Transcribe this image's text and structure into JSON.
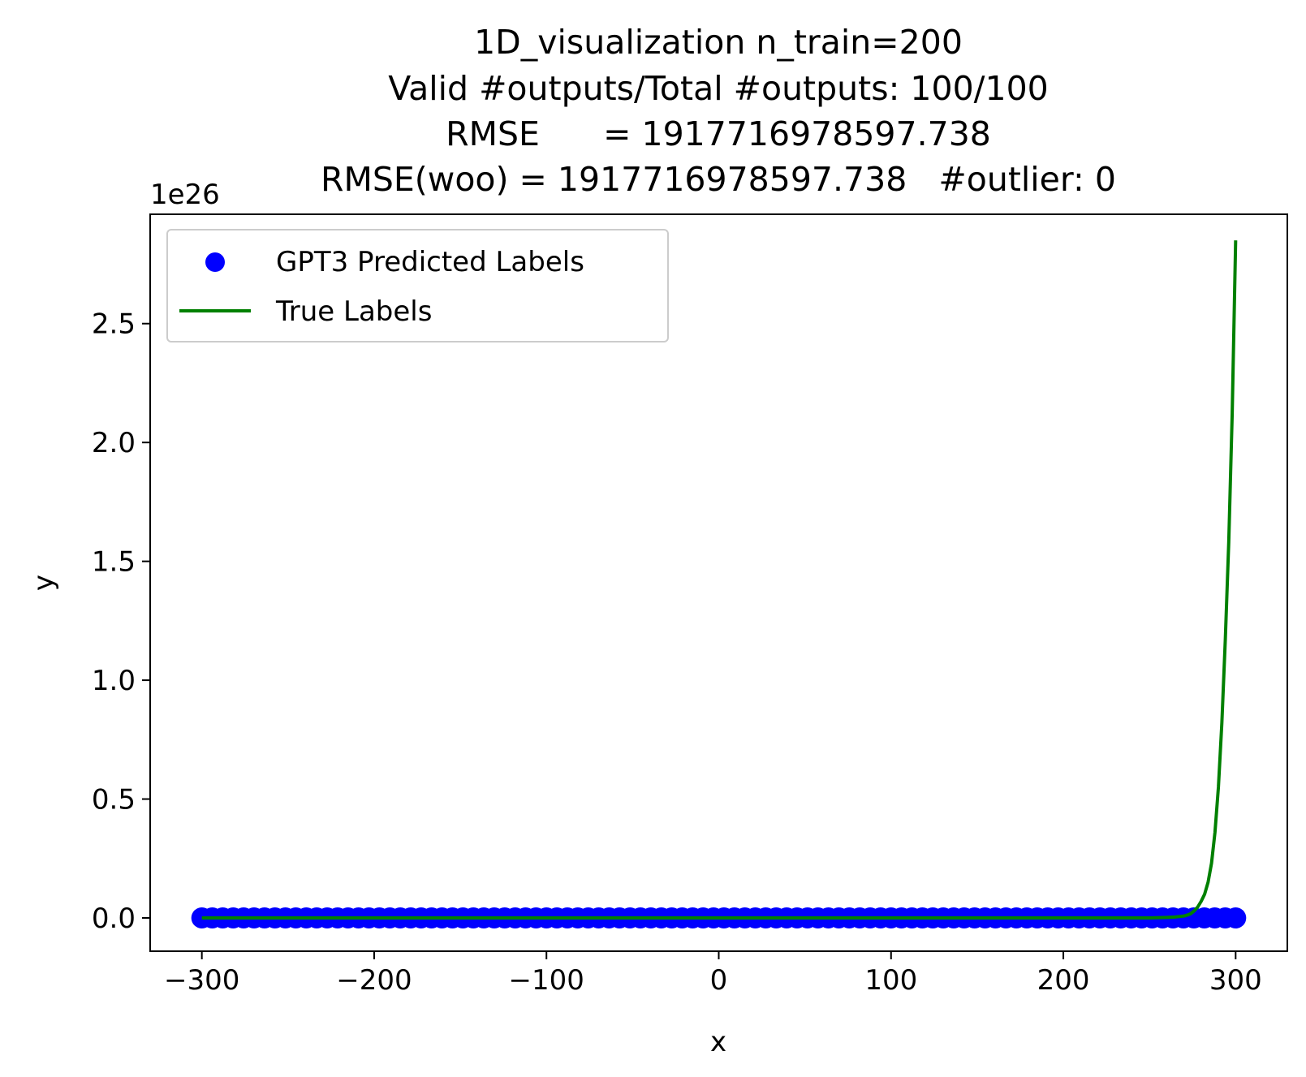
{
  "chart_data": {
    "type": "scatter",
    "title_lines": [
      "1D_visualization  n_train=200",
      "Valid #outputs/Total #outputs: 100/100",
      "RMSE      = 1917716978597.738",
      "RMSE(woo) = 1917716978597.738   #outlier: 0"
    ],
    "xlabel": "x",
    "ylabel": "y",
    "y_offset_label": "1e26",
    "y_scale": 1e+26,
    "xlim": [
      -330,
      330
    ],
    "ylim": [
      -0.14,
      2.96
    ],
    "x_ticks": [
      -300,
      -200,
      -100,
      0,
      100,
      200,
      300
    ],
    "x_tick_labels": [
      "−300",
      "−200",
      "−100",
      "0",
      "100",
      "200",
      "300"
    ],
    "y_ticks": [
      0.0,
      0.5,
      1.0,
      1.5,
      2.0,
      2.5
    ],
    "y_tick_labels": [
      "0.0",
      "0.5",
      "1.0",
      "1.5",
      "2.0",
      "2.5"
    ],
    "grid": false,
    "legend_position": "upper-left",
    "series": [
      {
        "name": "GPT3 Predicted Labels",
        "kind": "scatter",
        "color": "#0000ff",
        "x_range": [
          -300,
          300
        ],
        "n_points": 100,
        "y_value": 0.0
      },
      {
        "name": "True Labels",
        "kind": "line",
        "color": "#008000",
        "x": [
          -300,
          0,
          200,
          250,
          260,
          265,
          270,
          272,
          274,
          276,
          278,
          280,
          282,
          284,
          286,
          288,
          290,
          292,
          294,
          296,
          298,
          300
        ],
        "y": [
          0.0,
          0.0,
          0.0,
          0.0,
          0.002,
          0.004,
          0.008,
          0.012,
          0.018,
          0.03,
          0.046,
          0.07,
          0.1,
          0.15,
          0.23,
          0.36,
          0.55,
          0.82,
          1.17,
          1.58,
          2.12,
          2.85
        ]
      }
    ]
  }
}
